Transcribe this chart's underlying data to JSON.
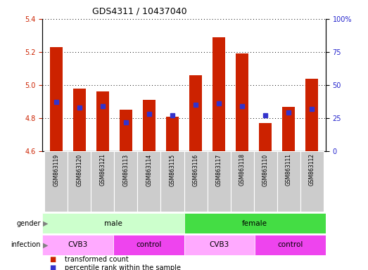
{
  "title": "GDS4311 / 10437040",
  "samples": [
    "GSM863119",
    "GSM863120",
    "GSM863121",
    "GSM863113",
    "GSM863114",
    "GSM863115",
    "GSM863116",
    "GSM863117",
    "GSM863118",
    "GSM863110",
    "GSM863111",
    "GSM863112"
  ],
  "transformed_counts": [
    5.23,
    4.98,
    4.96,
    4.85,
    4.91,
    4.81,
    5.06,
    5.29,
    5.19,
    4.77,
    4.87,
    5.04
  ],
  "percentile_ranks": [
    37,
    33,
    34,
    22,
    28,
    27,
    35,
    36,
    34,
    27,
    29,
    32
  ],
  "ylim_left": [
    4.6,
    5.4
  ],
  "ylim_right": [
    0,
    100
  ],
  "yticks_left": [
    4.6,
    4.8,
    5.0,
    5.2,
    5.4
  ],
  "yticks_right": [
    0,
    25,
    50,
    75,
    100
  ],
  "ytick_labels_right": [
    "0",
    "25",
    "50",
    "75",
    "100%"
  ],
  "bar_color": "#cc2200",
  "blue_color": "#3333cc",
  "gender_groups": [
    {
      "label": "male",
      "start": 0,
      "end": 6,
      "color": "#ccffcc"
    },
    {
      "label": "female",
      "start": 6,
      "end": 12,
      "color": "#44dd44"
    }
  ],
  "infection_groups": [
    {
      "label": "CVB3",
      "start": 0,
      "end": 3,
      "color": "#ffaaff"
    },
    {
      "label": "control",
      "start": 3,
      "end": 6,
      "color": "#ee44ee"
    },
    {
      "label": "CVB3",
      "start": 6,
      "end": 9,
      "color": "#ffaaff"
    },
    {
      "label": "control",
      "start": 9,
      "end": 12,
      "color": "#ee44ee"
    }
  ],
  "legend_red_label": "transformed count",
  "legend_blue_label": "percentile rank within the sample",
  "bar_width": 0.55,
  "base_value": 4.6,
  "grid_color": "#000000",
  "tick_color_left": "#cc2200",
  "tick_color_right": "#2222cc",
  "sample_label_bg": "#cccccc",
  "fig_bg": "#ffffff"
}
